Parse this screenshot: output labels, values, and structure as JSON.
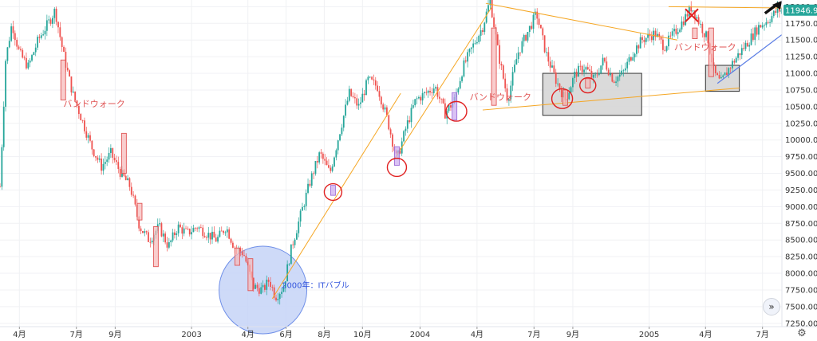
{
  "chart_data": {
    "type": "candlestick",
    "title": "",
    "y_axis": {
      "position": "right",
      "range": [
        7200,
        12100
      ],
      "ticks": [
        12000,
        11750,
        11500,
        11250,
        11000,
        10750,
        10500,
        10250,
        10000,
        9750,
        9500,
        9250,
        9000,
        8750,
        8500,
        8250,
        8000,
        7750,
        7500,
        7250
      ],
      "tick_labels": [
        "12000.00",
        "11750.00",
        "11500.00",
        "11250.00",
        "11000.00",
        "10750.00",
        "10500.00",
        "10250.00",
        "10000.00",
        "9750.00",
        "9500.00",
        "9250.00",
        "9000.00",
        "8750.00",
        "8500.00",
        "8250.00",
        "8000.00",
        "7750.00",
        "7500.00",
        "7250.00"
      ]
    },
    "x_axis": {
      "range": [
        "2002-03-01",
        "2005-08-01"
      ],
      "ticks": [
        {
          "date": "2002-04-01",
          "label": "4月"
        },
        {
          "date": "2002-07-01",
          "label": "7月"
        },
        {
          "date": "2002-09-01",
          "label": "9月"
        },
        {
          "date": "2003-01-01",
          "label": "2003"
        },
        {
          "date": "2003-04-01",
          "label": "4月"
        },
        {
          "date": "2003-06-01",
          "label": "6月"
        },
        {
          "date": "2003-08-01",
          "label": "8月"
        },
        {
          "date": "2003-10-01",
          "label": "10月"
        },
        {
          "date": "2004-01-01",
          "label": "2004"
        },
        {
          "date": "2004-04-01",
          "label": "4月"
        },
        {
          "date": "2004-07-01",
          "label": "7月"
        },
        {
          "date": "2004-09-01",
          "label": "9月"
        },
        {
          "date": "2005-01-01",
          "label": "2005"
        },
        {
          "date": "2005-04-01",
          "label": "4月"
        },
        {
          "date": "2005-07-01",
          "label": "7月"
        }
      ]
    },
    "price_path": [
      [
        "2002-03-01",
        9300
      ],
      [
        "2002-03-10",
        11200
      ],
      [
        "2002-03-20",
        11750
      ],
      [
        "2002-04-01",
        11300
      ],
      [
        "2002-04-15",
        11100
      ],
      [
        "2002-05-01",
        11500
      ],
      [
        "2002-05-20",
        11800
      ],
      [
        "2002-05-28",
        11950
      ],
      [
        "2002-06-10",
        11300
      ],
      [
        "2002-06-25",
        10700
      ],
      [
        "2002-07-10",
        10300
      ],
      [
        "2002-07-25",
        9900
      ],
      [
        "2002-08-10",
        9600
      ],
      [
        "2002-08-25",
        9800
      ],
      [
        "2002-09-10",
        9500
      ],
      [
        "2002-09-25",
        9300
      ],
      [
        "2002-10-10",
        8700
      ],
      [
        "2002-10-25",
        8500
      ],
      [
        "2002-11-10",
        8700
      ],
      [
        "2002-11-25",
        8400
      ],
      [
        "2002-12-10",
        8700
      ],
      [
        "2002-12-25",
        8600
      ],
      [
        "2003-01-10",
        8700
      ],
      [
        "2003-01-25",
        8600
      ],
      [
        "2003-02-10",
        8500
      ],
      [
        "2003-02-25",
        8700
      ],
      [
        "2003-03-10",
        8400
      ],
      [
        "2003-03-25",
        8300
      ],
      [
        "2003-04-10",
        7800
      ],
      [
        "2003-04-25",
        7750
      ],
      [
        "2003-05-05",
        7900
      ],
      [
        "2003-05-15",
        7650
      ],
      [
        "2003-05-28",
        7800
      ],
      [
        "2003-06-10",
        8400
      ],
      [
        "2003-06-25",
        8900
      ],
      [
        "2003-07-10",
        9400
      ],
      [
        "2003-07-25",
        9800
      ],
      [
        "2003-08-10",
        9500
      ],
      [
        "2003-08-25",
        10100
      ],
      [
        "2003-09-10",
        10700
      ],
      [
        "2003-09-25",
        10500
      ],
      [
        "2003-10-10",
        10900
      ],
      [
        "2003-10-25",
        10800
      ],
      [
        "2003-11-10",
        10300
      ],
      [
        "2003-11-25",
        9700
      ],
      [
        "2003-12-10",
        10200
      ],
      [
        "2003-12-25",
        10600
      ],
      [
        "2004-01-10",
        10700
      ],
      [
        "2004-01-25",
        10800
      ],
      [
        "2004-02-10",
        10400
      ],
      [
        "2004-02-25",
        10600
      ],
      [
        "2004-03-10",
        11100
      ],
      [
        "2004-03-25",
        11400
      ],
      [
        "2004-04-10",
        11700
      ],
      [
        "2004-04-22",
        12100
      ],
      [
        "2004-05-05",
        11300
      ],
      [
        "2004-05-20",
        10600
      ],
      [
        "2004-06-05",
        11300
      ],
      [
        "2004-06-20",
        11600
      ],
      [
        "2004-07-05",
        11900
      ],
      [
        "2004-07-20",
        11300
      ],
      [
        "2004-08-05",
        10900
      ],
      [
        "2004-08-20",
        10600
      ],
      [
        "2004-09-05",
        11000
      ],
      [
        "2004-09-20",
        11100
      ],
      [
        "2004-10-05",
        10900
      ],
      [
        "2004-10-20",
        11200
      ],
      [
        "2004-11-05",
        10900
      ],
      [
        "2004-11-20",
        11000
      ],
      [
        "2004-12-05",
        11300
      ],
      [
        "2004-12-20",
        11500
      ],
      [
        "2005-01-10",
        11600
      ],
      [
        "2005-01-25",
        11400
      ],
      [
        "2005-02-10",
        11600
      ],
      [
        "2005-02-25",
        11800
      ],
      [
        "2005-03-10",
        12000
      ],
      [
        "2005-03-25",
        11700
      ],
      [
        "2005-04-05",
        11500
      ],
      [
        "2005-04-15",
        11000
      ],
      [
        "2005-04-25",
        10850
      ],
      [
        "2005-05-10",
        11100
      ],
      [
        "2005-05-25",
        11300
      ],
      [
        "2005-06-10",
        11500
      ],
      [
        "2005-06-25",
        11700
      ],
      [
        "2005-07-10",
        11800
      ],
      [
        "2005-07-25",
        11946.92
      ]
    ],
    "last_price": 11946.92,
    "last_price_label": "11946.92",
    "annotations": {
      "texts": [
        {
          "text": "バンドウォーク",
          "date": "2002-06-10",
          "value": 10500,
          "color": "#e05555"
        },
        {
          "text": "バンドウォーク",
          "date": "2004-03-20",
          "value": 10600,
          "color": "#e05555"
        },
        {
          "text": "バンドウォーク",
          "date": "2005-02-10",
          "value": 11350,
          "color": "#e05555"
        },
        {
          "text": "2000年：ITバブル",
          "date": "2003-05-25",
          "value": 7780,
          "color": "#3355dd"
        }
      ],
      "orange_lines": [
        [
          [
            "2003-05-10",
            7620
          ],
          [
            "2003-12-01",
            10700
          ]
        ],
        [
          [
            "2003-11-20",
            9700
          ],
          [
            "2004-04-25",
            12000
          ]
        ],
        [
          [
            "2004-04-15",
            12050
          ],
          [
            "2005-02-15",
            11500
          ]
        ],
        [
          [
            "2004-04-10",
            10450
          ],
          [
            "2005-05-25",
            10780
          ]
        ],
        [
          [
            "2005-02-01",
            12000
          ],
          [
            "2005-08-01",
            11980
          ]
        ]
      ],
      "blue_line": [
        [
          "2005-04-20",
          10850
        ],
        [
          "2005-08-01",
          11580
        ]
      ],
      "gray_boxes": [
        {
          "from": "2004-07-15",
          "to": "2004-12-20",
          "top": 11000,
          "bottom": 10370
        },
        {
          "from": "2005-04-01",
          "to": "2005-05-25",
          "top": 11120,
          "bottom": 10730
        }
      ],
      "red_bars": [
        {
          "date": "2002-06-10",
          "top": 11200,
          "bottom": 10600
        },
        {
          "date": "2002-09-15",
          "top": 10100,
          "bottom": 9500
        },
        {
          "date": "2002-10-10",
          "top": 9050,
          "bottom": 8800
        },
        {
          "date": "2002-11-05",
          "top": 8700,
          "bottom": 8100
        },
        {
          "date": "2003-03-15",
          "top": 8380,
          "bottom": 8120
        },
        {
          "date": "2003-04-05",
          "top": 8220,
          "bottom": 7740
        },
        {
          "date": "2004-04-28",
          "top": 11680,
          "bottom": 10520
        },
        {
          "date": "2004-08-20",
          "top": 10750,
          "bottom": 10520
        },
        {
          "date": "2004-09-25",
          "top": 10920,
          "bottom": 10780
        },
        {
          "date": "2005-03-15",
          "top": 11680,
          "bottom": 11520
        },
        {
          "date": "2005-04-10",
          "top": 11680,
          "bottom": 10950
        }
      ],
      "purple_bars": [
        {
          "date": "2003-08-15",
          "top": 9320,
          "bottom": 9170
        },
        {
          "date": "2003-11-25",
          "top": 9900,
          "bottom": 9620
        },
        {
          "date": "2004-02-25",
          "top": 10710,
          "bottom": 10300
        }
      ],
      "red_circles": [
        {
          "date": "2003-08-15",
          "value": 9220,
          "r": 11
        },
        {
          "date": "2003-11-25",
          "value": 9590,
          "r": 12
        },
        {
          "date": "2004-02-28",
          "value": 10430,
          "r": 13
        },
        {
          "date": "2004-08-15",
          "value": 10620,
          "r": 13
        },
        {
          "date": "2004-09-25",
          "value": 10820,
          "r": 10
        }
      ],
      "red_x": {
        "date": "2005-03-10",
        "value": 11870
      },
      "blue_circle": {
        "date": "2003-04-25",
        "value": 7750,
        "r": 55
      },
      "black_arrow": [
        [
          "2005-07-05",
          11900
        ],
        [
          "2005-08-01",
          12150
        ]
      ]
    }
  },
  "controls": {
    "scroll_icon": "double-chevron-right-icon",
    "scroll_glyph": "»",
    "settings_icon": "gear-icon",
    "settings_glyph": "⚙"
  }
}
